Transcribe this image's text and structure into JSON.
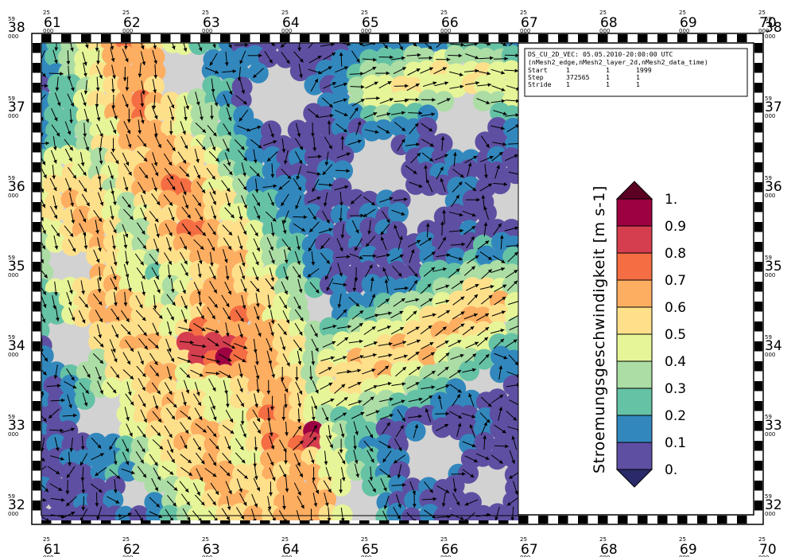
{
  "info_box": {
    "line1": "DS_CU_2D_VEC: 05.05.2010-20:00:00 UTC",
    "line2": "(nMesh2_edge,nMesh2_layer_2d,nMesh2_data_time)",
    "rows": [
      {
        "label": "Start",
        "a": "1",
        "b": "1",
        "c": "1999"
      },
      {
        "label": "Step",
        "a": "372565",
        "b": "1",
        "c": "1"
      },
      {
        "label": "Stride",
        "a": "1",
        "b": "1",
        "c": "1"
      }
    ]
  },
  "colorbar": {
    "title": "Stroemungsgeschwindigkeit [m s-1]",
    "levels": [
      "0.",
      "0.1",
      "0.2",
      "0.3",
      "0.4",
      "0.5",
      "0.6",
      "0.7",
      "0.8",
      "0.9",
      "1."
    ],
    "colors": [
      "#5e4fa2",
      "#3288bd",
      "#66c2a5",
      "#abdda4",
      "#e6f598",
      "#fee08b",
      "#fdae61",
      "#f46d43",
      "#d53e4f",
      "#9e0142"
    ],
    "under_color": "#2a2a6a",
    "over_color": "#5a0022"
  },
  "axes": {
    "x_ticks": [
      "61",
      "62",
      "63",
      "64",
      "65",
      "66",
      "67",
      "68",
      "69",
      "70"
    ],
    "x_prefix": "25",
    "x_sub": "000",
    "y_ticks": [
      "38",
      "37",
      "36",
      "35",
      "34",
      "33",
      "32"
    ],
    "y_prefix": "59",
    "y_sub": "000"
  },
  "colors": {
    "land": "#d2d2d2",
    "arrow": "#000000"
  }
}
